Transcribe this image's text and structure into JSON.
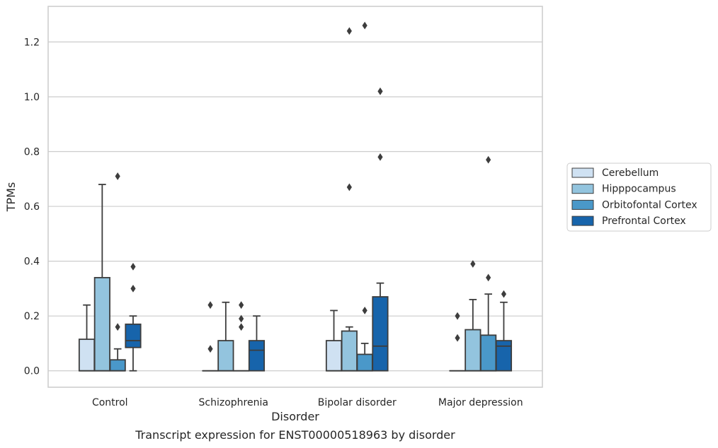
{
  "chart_data": {
    "type": "box",
    "caption": "Transcript expression for ENST00000518963 by disorder",
    "xlabel": "Disorder",
    "ylabel": "TPMs",
    "ylim": [
      -0.06,
      1.33
    ],
    "yticks": [
      0.0,
      0.2,
      0.4,
      0.6,
      0.8,
      1.0,
      1.2
    ],
    "ytick_labels": [
      "0.0",
      "0.2",
      "0.4",
      "0.6",
      "0.8",
      "1.0",
      "1.2"
    ],
    "grid": "horizontal",
    "legend_position": "right",
    "categories": [
      "Control",
      "Schizophrenia",
      "Bipolar disorder",
      "Major depression"
    ],
    "series": [
      {
        "name": "Cerebellum",
        "color": "#cfe1f2",
        "boxes": [
          {
            "whislo": 0.0,
            "q1": 0.0,
            "med": 0.0,
            "q3": 0.115,
            "whishi": 0.24,
            "fliers": []
          },
          {
            "whislo": 0.0,
            "q1": 0.0,
            "med": 0.0,
            "q3": 0.0,
            "whishi": 0.0,
            "fliers": [
              0.08,
              0.24
            ]
          },
          {
            "whislo": 0.0,
            "q1": 0.0,
            "med": 0.0,
            "q3": 0.11,
            "whishi": 0.22,
            "fliers": []
          },
          {
            "whislo": 0.0,
            "q1": 0.0,
            "med": 0.0,
            "q3": 0.0,
            "whishi": 0.0,
            "fliers": [
              0.12,
              0.2
            ]
          }
        ]
      },
      {
        "name": "Hipppocampus",
        "color": "#93c4de",
        "boxes": [
          {
            "whislo": 0.0,
            "q1": 0.0,
            "med": 0.0,
            "q3": 0.34,
            "whishi": 0.68,
            "fliers": []
          },
          {
            "whislo": 0.0,
            "q1": 0.0,
            "med": 0.0,
            "q3": 0.11,
            "whishi": 0.25,
            "fliers": []
          },
          {
            "whislo": 0.0,
            "q1": 0.0,
            "med": 0.0,
            "q3": 0.145,
            "whishi": 0.16,
            "fliers": [
              0.67,
              1.24
            ]
          },
          {
            "whislo": 0.0,
            "q1": 0.0,
            "med": 0.0,
            "q3": 0.15,
            "whishi": 0.26,
            "fliers": [
              0.39
            ]
          }
        ]
      },
      {
        "name": "Orbitofontal Cortex",
        "color": "#4a98c9",
        "boxes": [
          {
            "whislo": 0.0,
            "q1": 0.0,
            "med": 0.0,
            "q3": 0.04,
            "whishi": 0.08,
            "fliers": [
              0.16,
              0.71
            ]
          },
          {
            "whislo": 0.0,
            "q1": 0.0,
            "med": 0.0,
            "q3": 0.0,
            "whishi": 0.0,
            "fliers": [
              0.16,
              0.19,
              0.24
            ]
          },
          {
            "whislo": 0.0,
            "q1": 0.0,
            "med": 0.0,
            "q3": 0.06,
            "whishi": 0.1,
            "fliers": [
              0.22,
              1.26
            ]
          },
          {
            "whislo": 0.0,
            "q1": 0.0,
            "med": 0.0,
            "q3": 0.13,
            "whishi": 0.28,
            "fliers": [
              0.34,
              0.77
            ]
          }
        ]
      },
      {
        "name": "Prefrontal Cortex",
        "color": "#1764ab",
        "boxes": [
          {
            "whislo": 0.0,
            "q1": 0.085,
            "med": 0.11,
            "q3": 0.17,
            "whishi": 0.2,
            "fliers": [
              0.3,
              0.38
            ]
          },
          {
            "whislo": 0.0,
            "q1": 0.0,
            "med": 0.075,
            "q3": 0.11,
            "whishi": 0.2,
            "fliers": []
          },
          {
            "whislo": 0.0,
            "q1": 0.0,
            "med": 0.09,
            "q3": 0.27,
            "whishi": 0.32,
            "fliers": [
              0.78,
              1.02
            ]
          },
          {
            "whislo": 0.0,
            "q1": 0.0,
            "med": 0.09,
            "q3": 0.11,
            "whishi": 0.25,
            "fliers": [
              0.28
            ]
          }
        ]
      }
    ]
  }
}
